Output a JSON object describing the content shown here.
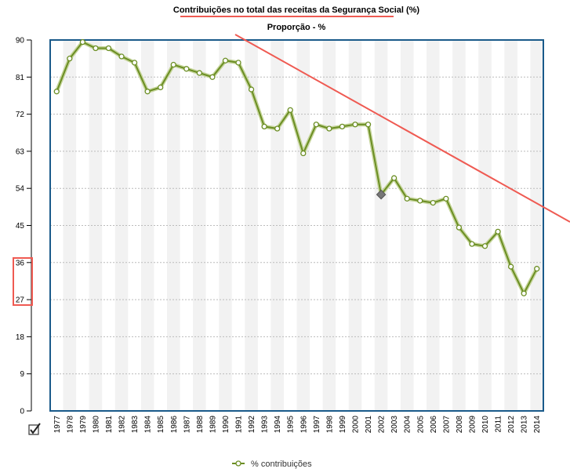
{
  "chart_data": {
    "type": "line",
    "title": "Contribuições no total das receitas da Segurança Social (%)",
    "subtitle": "Proporção - %",
    "xlabel": "",
    "ylabel": "",
    "ylim": [
      0,
      90
    ],
    "yticks": [
      "0",
      "9",
      "18",
      "27",
      "36",
      "45",
      "54",
      "63",
      "72",
      "81",
      "90"
    ],
    "grid": true,
    "legend_position": "bottom-center",
    "categories": [
      "1977",
      "1978",
      "1979",
      "1980",
      "1981",
      "1982",
      "1983",
      "1984",
      "1985",
      "1986",
      "1987",
      "1988",
      "1989",
      "1990",
      "1991",
      "1992",
      "1993",
      "1994",
      "1995",
      "1996",
      "1997",
      "1998",
      "1999",
      "2000",
      "2001",
      "2002",
      "2003",
      "2004",
      "2005",
      "2006",
      "2007",
      "2008",
      "2009",
      "2010",
      "2011",
      "2012",
      "2013",
      "2014"
    ],
    "series": [
      {
        "name": "% contribuições",
        "color": "#6b8e23",
        "values": [
          77.5,
          85.5,
          89.5,
          88.0,
          88.0,
          86.0,
          84.5,
          77.5,
          78.5,
          84.0,
          83.0,
          82.0,
          81.0,
          85.0,
          84.5,
          78.0,
          69.0,
          68.5,
          73.0,
          62.5,
          69.5,
          68.5,
          69.0,
          69.5,
          69.5,
          52.5,
          56.5,
          51.5,
          51.0,
          50.5,
          51.5,
          44.5,
          40.5,
          40.0,
          43.5,
          35.0,
          28.5,
          34.5
        ],
        "highlight_index": 25
      }
    ],
    "annotations": {
      "trend_line_color": "#ef5a52",
      "highlight_box_color": "#ef5a52",
      "title_underline_color": "#ef5a52"
    }
  }
}
